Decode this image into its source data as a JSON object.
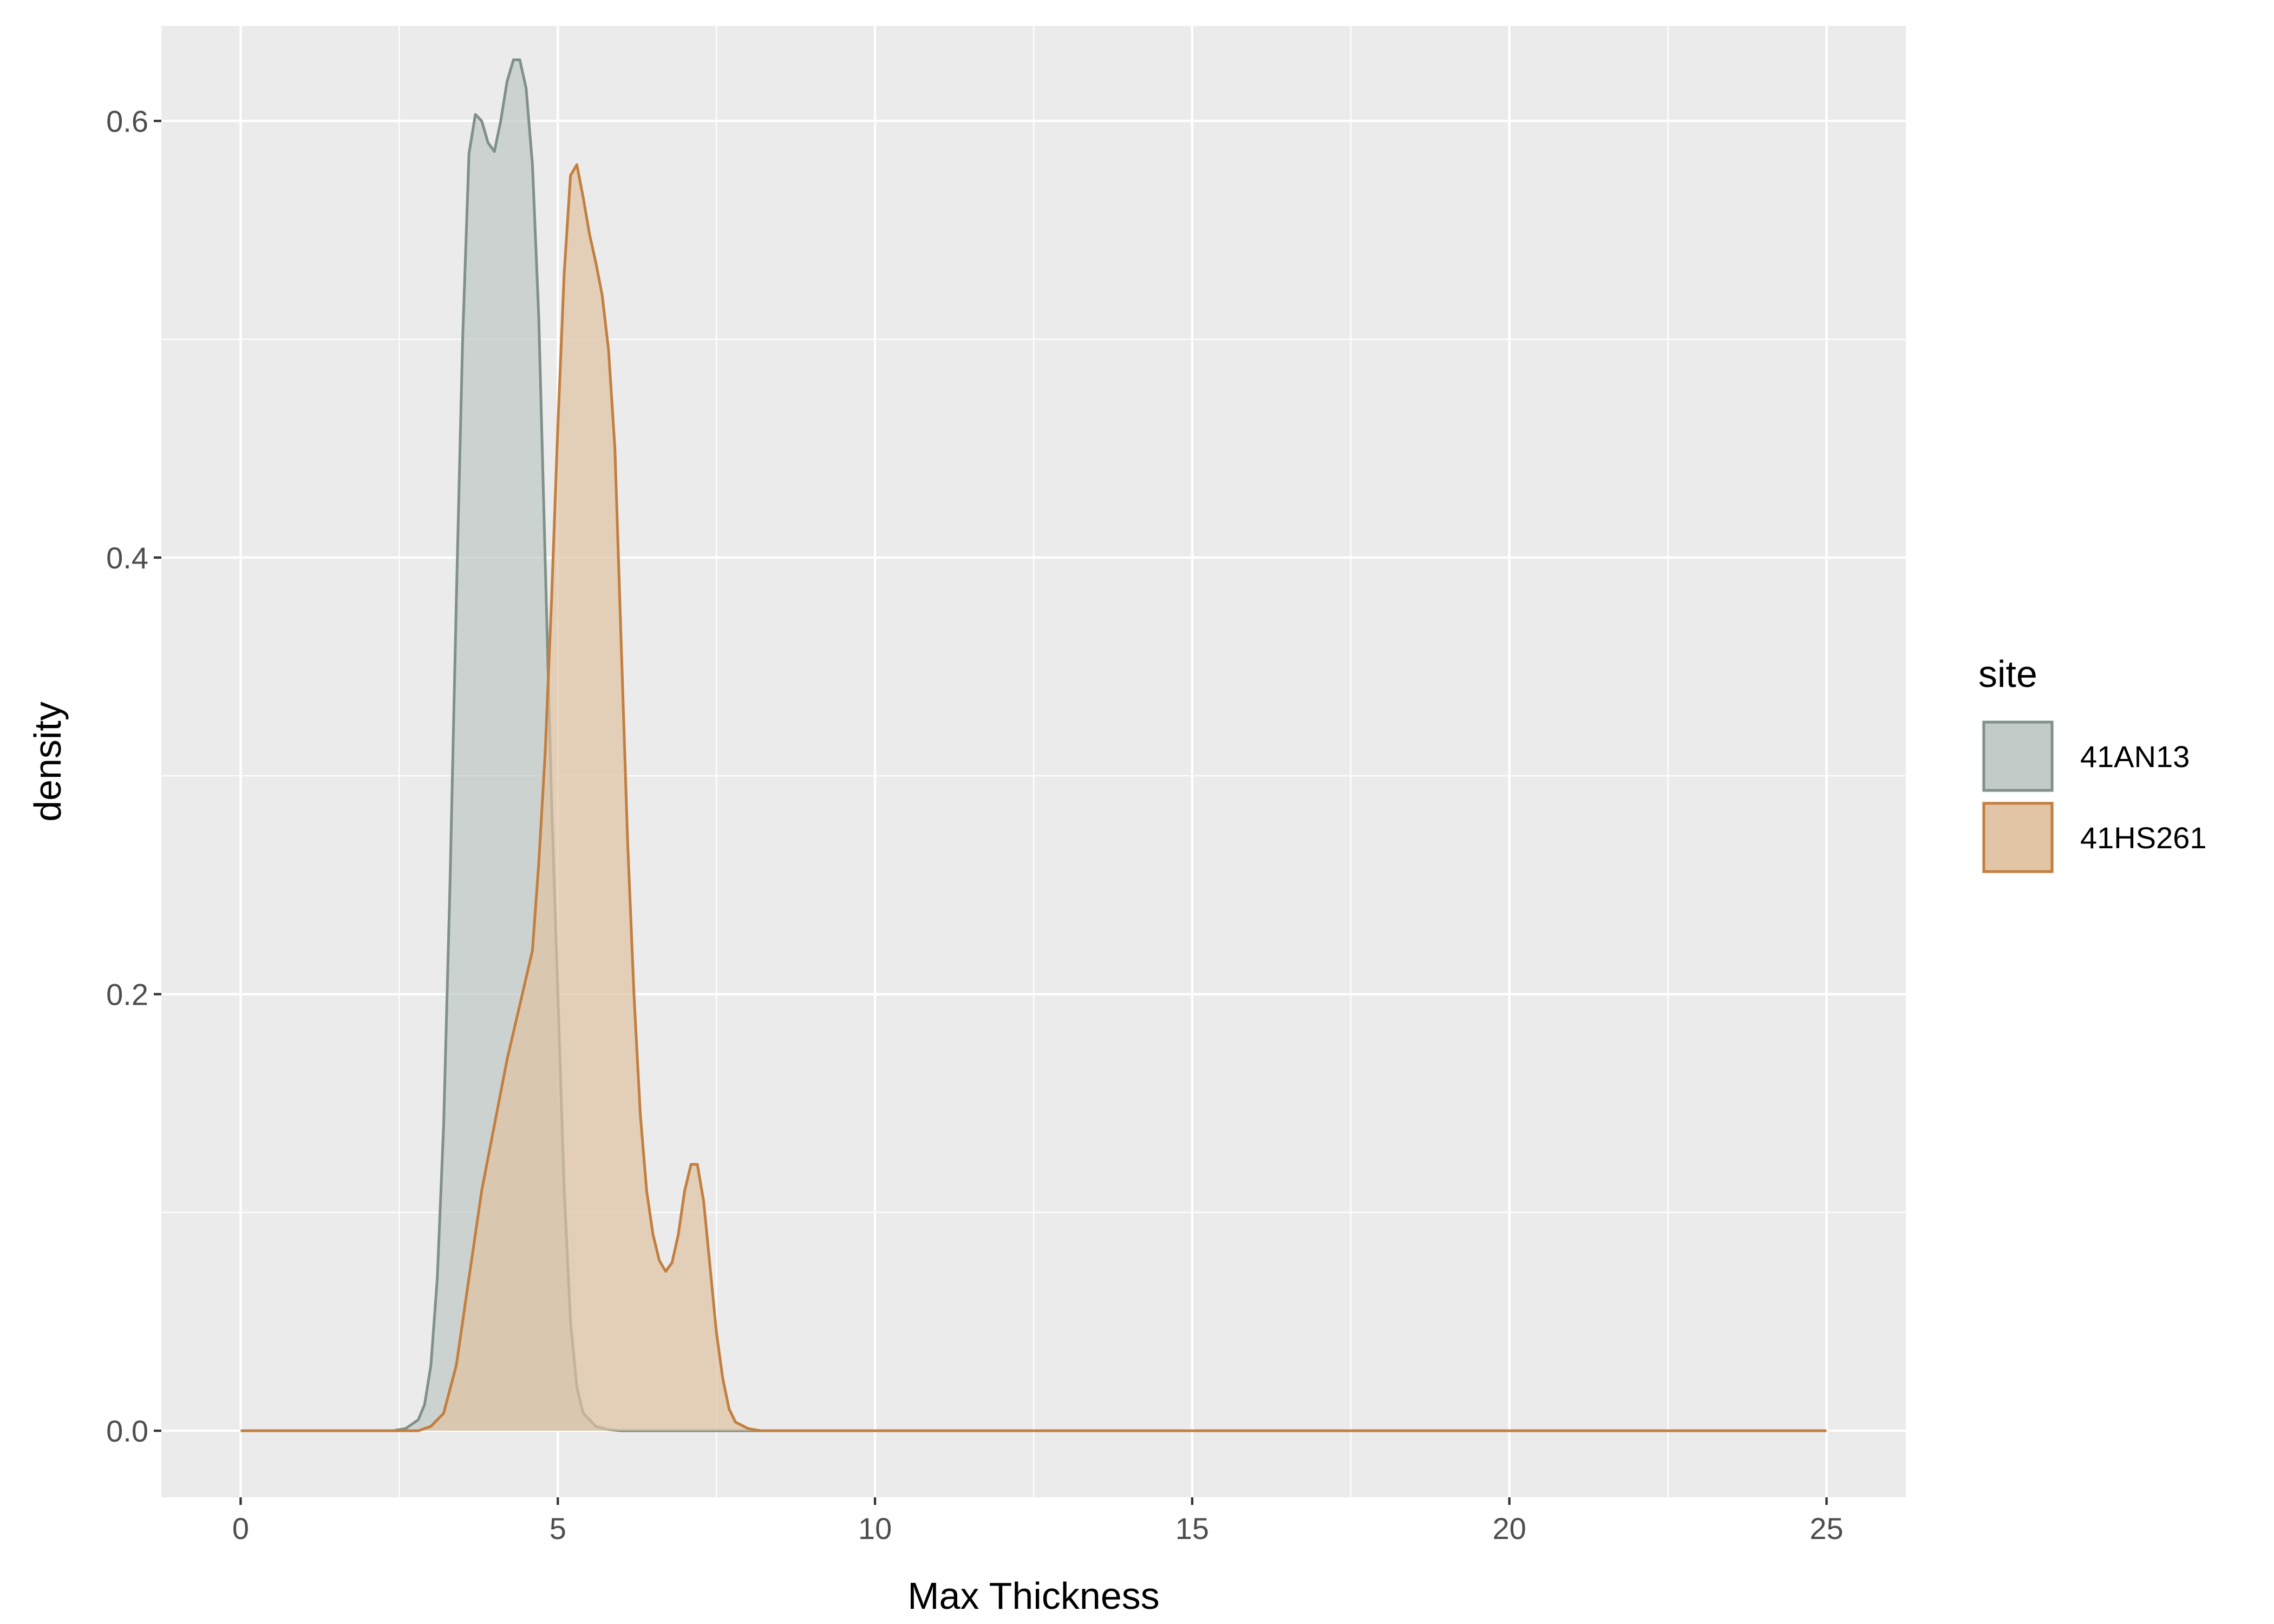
{
  "chart_data": {
    "type": "area",
    "subtype": "density",
    "xlabel": "Max Thickness",
    "ylabel": "density",
    "xlim": [
      -1.25,
      26.25
    ],
    "ylim": [
      -0.0305,
      0.6435
    ],
    "x_ticks": [
      0,
      5,
      10,
      15,
      20,
      25
    ],
    "x_tick_labels": [
      "0",
      "5",
      "10",
      "15",
      "20",
      "25"
    ],
    "y_ticks": [
      0.0,
      0.2,
      0.4,
      0.6
    ],
    "y_tick_labels": [
      "0.0",
      "0.2",
      "0.4",
      "0.6"
    ],
    "grid": true,
    "legend": {
      "title": "site",
      "position": "right"
    },
    "series": [
      {
        "name": "41AN13",
        "color": "#7f9189",
        "fill": "#bfc8c4",
        "points": [
          [
            0,
            0
          ],
          [
            2.4,
            0
          ],
          [
            2.6,
            0.001
          ],
          [
            2.8,
            0.005
          ],
          [
            2.9,
            0.012
          ],
          [
            3.0,
            0.03
          ],
          [
            3.1,
            0.07
          ],
          [
            3.2,
            0.14
          ],
          [
            3.3,
            0.25
          ],
          [
            3.4,
            0.38
          ],
          [
            3.5,
            0.5
          ],
          [
            3.6,
            0.585
          ],
          [
            3.7,
            0.603
          ],
          [
            3.8,
            0.6
          ],
          [
            3.9,
            0.59
          ],
          [
            4.0,
            0.586
          ],
          [
            4.1,
            0.6
          ],
          [
            4.2,
            0.618
          ],
          [
            4.3,
            0.628
          ],
          [
            4.4,
            0.628
          ],
          [
            4.5,
            0.615
          ],
          [
            4.6,
            0.58
          ],
          [
            4.7,
            0.51
          ],
          [
            4.8,
            0.4
          ],
          [
            4.9,
            0.29
          ],
          [
            5.0,
            0.2
          ],
          [
            5.1,
            0.11
          ],
          [
            5.2,
            0.05
          ],
          [
            5.3,
            0.02
          ],
          [
            5.4,
            0.008
          ],
          [
            5.6,
            0.002
          ],
          [
            5.8,
            0.0005
          ],
          [
            6.0,
            0
          ],
          [
            25,
            0
          ]
        ]
      },
      {
        "name": "41HS261",
        "color": "#c27f3f",
        "fill": "#e0c2a1",
        "points": [
          [
            0,
            0
          ],
          [
            2.8,
            0
          ],
          [
            3.0,
            0.002
          ],
          [
            3.2,
            0.008
          ],
          [
            3.4,
            0.03
          ],
          [
            3.6,
            0.07
          ],
          [
            3.8,
            0.11
          ],
          [
            4.0,
            0.14
          ],
          [
            4.2,
            0.17
          ],
          [
            4.4,
            0.195
          ],
          [
            4.6,
            0.22
          ],
          [
            4.7,
            0.26
          ],
          [
            4.8,
            0.31
          ],
          [
            4.9,
            0.38
          ],
          [
            5.0,
            0.46
          ],
          [
            5.1,
            0.53
          ],
          [
            5.2,
            0.575
          ],
          [
            5.3,
            0.58
          ],
          [
            5.4,
            0.565
          ],
          [
            5.5,
            0.548
          ],
          [
            5.6,
            0.535
          ],
          [
            5.7,
            0.52
          ],
          [
            5.8,
            0.495
          ],
          [
            5.9,
            0.45
          ],
          [
            6.0,
            0.36
          ],
          [
            6.1,
            0.27
          ],
          [
            6.2,
            0.2
          ],
          [
            6.3,
            0.145
          ],
          [
            6.4,
            0.11
          ],
          [
            6.5,
            0.09
          ],
          [
            6.6,
            0.078
          ],
          [
            6.7,
            0.073
          ],
          [
            6.8,
            0.077
          ],
          [
            6.9,
            0.09
          ],
          [
            7.0,
            0.11
          ],
          [
            7.1,
            0.122
          ],
          [
            7.2,
            0.122
          ],
          [
            7.3,
            0.105
          ],
          [
            7.4,
            0.075
          ],
          [
            7.5,
            0.045
          ],
          [
            7.6,
            0.024
          ],
          [
            7.7,
            0.01
          ],
          [
            7.8,
            0.004
          ],
          [
            8.0,
            0.001
          ],
          [
            8.2,
            0
          ],
          [
            25,
            0
          ]
        ]
      }
    ]
  }
}
